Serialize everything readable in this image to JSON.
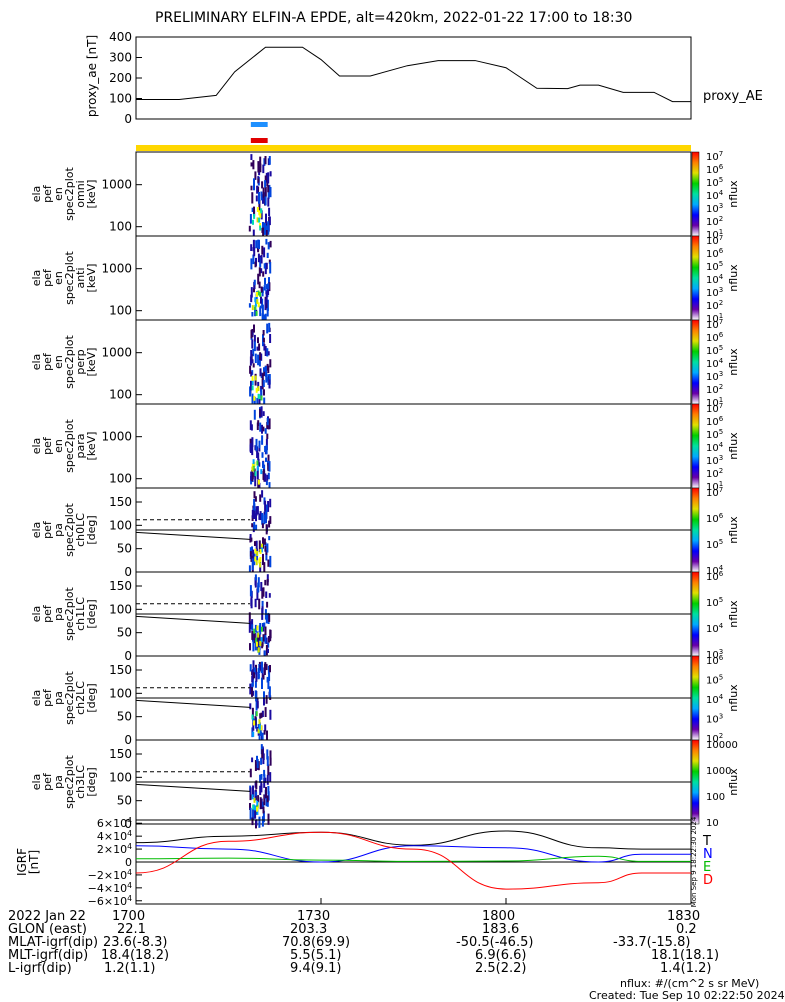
{
  "title": "PRELIMINARY ELFIN-A EPDE, alt=420km, 2022-01-22 17:00 to 18:30",
  "side_stamp": "Mon Sep 9 18:22:30 2024",
  "colors": {
    "blue_bar": "#1e90ff",
    "red_bar": "#e00000",
    "yellow_band": "#ffd700",
    "T": "#000000",
    "N": "#0000ff",
    "E": "#00bb00",
    "D": "#ff0000"
  },
  "chart_data": [
    {
      "type": "line",
      "ylabel": "proxy_ae [nT]",
      "legend": "proxy_AE",
      "ylim": [
        0,
        400
      ],
      "yticks": [
        0,
        100,
        200,
        300,
        400
      ],
      "x_minutes": [
        0,
        7,
        13,
        16,
        21,
        27,
        30,
        33,
        38,
        44,
        49,
        55,
        60,
        65,
        70,
        72,
        73,
        75,
        79,
        84,
        87,
        90
      ],
      "values": [
        95,
        95,
        115,
        230,
        350,
        350,
        290,
        210,
        210,
        260,
        285,
        285,
        250,
        150,
        148,
        165,
        165,
        165,
        130,
        130,
        85,
        85
      ]
    },
    {
      "type": "heatmap",
      "panels": [
        {
          "ylabel": "ela pef en spec2plot omni [keV]",
          "ylog": true,
          "yrange": [
            60,
            6000
          ],
          "yticks": [
            100,
            1000
          ],
          "cbar_label": "nflux",
          "cbar_ticks": [
            "10^1",
            "10^2",
            "10^3",
            "10^4",
            "10^5",
            "10^6",
            "10^7"
          ]
        },
        {
          "ylabel": "ela pef en spec2plot anti [keV]",
          "ylog": true,
          "yrange": [
            60,
            6000
          ],
          "yticks": [
            100,
            1000
          ],
          "cbar_label": "nflux",
          "cbar_ticks": [
            "10^1",
            "10^2",
            "10^3",
            "10^4",
            "10^5",
            "10^6",
            "10^7"
          ]
        },
        {
          "ylabel": "ela pef en spec2plot perp [keV]",
          "ylog": true,
          "yrange": [
            60,
            6000
          ],
          "yticks": [
            100,
            1000
          ],
          "cbar_label": "nflux",
          "cbar_ticks": [
            "10^1",
            "10^2",
            "10^3",
            "10^4",
            "10^5",
            "10^6",
            "10^7"
          ]
        },
        {
          "ylabel": "ela pef en spec2plot para [keV]",
          "ylog": true,
          "yrange": [
            60,
            6000
          ],
          "yticks": [
            100,
            1000
          ],
          "cbar_label": "nflux",
          "cbar_ticks": [
            "10^1",
            "10^2",
            "10^3",
            "10^4",
            "10^5",
            "10^6",
            "10^7"
          ]
        },
        {
          "ylabel": "ela pef pa spec2plot ch0LC [deg]",
          "yrange": [
            0,
            180
          ],
          "yticks": [
            0,
            50,
            100,
            150
          ],
          "cbar_label": "nflux",
          "cbar_ticks": [
            "10^4",
            "10^5",
            "10^6",
            "10^7"
          ]
        },
        {
          "ylabel": "ela pef pa spec2plot ch1LC [deg]",
          "yrange": [
            0,
            180
          ],
          "yticks": [
            0,
            50,
            100,
            150
          ],
          "cbar_label": "nflux",
          "cbar_ticks": [
            "10^3",
            "10^4",
            "10^5",
            "10^6"
          ]
        },
        {
          "ylabel": "ela pef pa spec2plot ch2LC [deg]",
          "yrange": [
            0,
            180
          ],
          "yticks": [
            0,
            50,
            100,
            150
          ],
          "cbar_label": "nflux",
          "cbar_ticks": [
            "10^2",
            "10^3",
            "10^4",
            "10^5",
            "10^6"
          ]
        },
        {
          "ylabel": "ela pef pa spec2plot ch3LC [deg]",
          "yrange": [
            0,
            180
          ],
          "yticks": [
            0,
            50,
            100,
            150
          ],
          "cbar_label": "nflux",
          "cbar_ticks": [
            "10",
            "100",
            "1000",
            "10000"
          ]
        }
      ],
      "activity_minutes": [
        17,
        22
      ],
      "loss_cone_deg": {
        "solid_start": 85,
        "solid_end": 70,
        "dashed": 112,
        "level_line": 90
      }
    },
    {
      "type": "line",
      "ylabel": "IGRF [nT]",
      "ylim": [
        -65000,
        65000
      ],
      "yticks": [
        "−6×10^4",
        "−4×10^4",
        "−2×10^4",
        "0",
        "2×10^4",
        "4×10^4",
        "6×10^4"
      ],
      "x_minutes": [
        0,
        15,
        30,
        45,
        60,
        75,
        82,
        90
      ],
      "series": [
        {
          "name": "T",
          "values": [
            30000,
            40000,
            46000,
            26000,
            48000,
            22000,
            20000,
            20000
          ]
        },
        {
          "name": "N",
          "values": [
            25000,
            20000,
            0,
            25000,
            22000,
            0,
            12000,
            12000
          ]
        },
        {
          "name": "E",
          "values": [
            5000,
            6000,
            3000,
            1000,
            1500,
            9000,
            1000,
            1000
          ]
        },
        {
          "name": "D",
          "values": [
            -17000,
            32000,
            46000,
            20000,
            -42000,
            -32000,
            -17000,
            -17000
          ]
        }
      ]
    }
  ],
  "x_axis": {
    "ticks": [
      "1700",
      "1730",
      "1800",
      "1830"
    ],
    "rows": [
      {
        "label": "2022 Jan 22",
        "values": [
          "",
          "",
          "",
          ""
        ]
      },
      {
        "label": "GLON (east)",
        "values": [
          "22.1",
          "203.3",
          "183.6",
          "0.2"
        ]
      },
      {
        "label": "MLAT-igrf(dip)",
        "values": [
          "23.6(-8.3)",
          "70.8(69.9)",
          "-50.5(-46.5)",
          "-33.7(-15.8)"
        ]
      },
      {
        "label": "MLT-igrf(dip)",
        "values": [
          "18.4(18.2)",
          "5.5(5.1)",
          "6.9(6.6)",
          "18.1(18.1)"
        ]
      },
      {
        "label": "L-igrf(dip)",
        "values": [
          "1.2(1.1)",
          "9.4(9.1)",
          "2.5(2.2)",
          "1.4(1.2)"
        ]
      }
    ]
  },
  "footer": {
    "units": "nflux: #/(cm^2 s sr MeV)",
    "created": "Created: Tue Sep 10 02:22:50 2024"
  }
}
